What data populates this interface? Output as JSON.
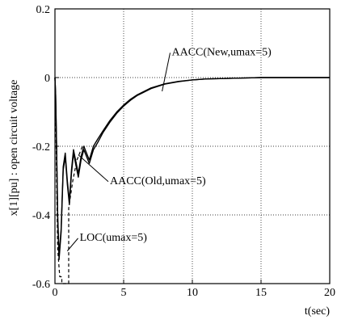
{
  "chart_data": {
    "type": "line",
    "xlabel": "t(sec)",
    "ylabel": "x[1][pu] : open circuit voltage",
    "xlim": [
      0,
      20
    ],
    "ylim": [
      -0.6,
      0.2
    ],
    "x_ticks": [
      "0",
      "5",
      "10",
      "15",
      "20"
    ],
    "y_ticks": [
      "-0.6",
      "-0.4",
      "-0.2",
      "0",
      "0.2"
    ],
    "grid": "dotted",
    "series": [
      {
        "name": "AACC(New,umax=5)",
        "style": "solid",
        "x": [
          0,
          0.05,
          0.12,
          0.2,
          0.3,
          0.45,
          0.6,
          0.75,
          0.9,
          1.05,
          1.2,
          1.35,
          1.5,
          1.7,
          1.9,
          2.1,
          2.3,
          2.5,
          2.8,
          3.1,
          3.5,
          4,
          4.5,
          5,
          5.5,
          6,
          7,
          8,
          9,
          10,
          11,
          12,
          13,
          14,
          15,
          16,
          18,
          20
        ],
        "y": [
          0,
          -0.05,
          -0.2,
          -0.4,
          -0.52,
          -0.44,
          -0.26,
          -0.22,
          -0.3,
          -0.36,
          -0.27,
          -0.21,
          -0.24,
          -0.28,
          -0.23,
          -0.2,
          -0.22,
          -0.24,
          -0.2,
          -0.18,
          -0.155,
          -0.125,
          -0.1,
          -0.08,
          -0.063,
          -0.05,
          -0.03,
          -0.018,
          -0.011,
          -0.007,
          -0.004,
          -0.003,
          -0.002,
          -0.001,
          0,
          0,
          0,
          0
        ]
      },
      {
        "name": "AACC(Old,umax=5)",
        "style": "solid",
        "x": [
          0,
          0.05,
          0.12,
          0.2,
          0.3,
          0.45,
          0.6,
          0.75,
          0.9,
          1.05,
          1.2,
          1.35,
          1.5,
          1.7,
          1.9,
          2.1,
          2.3,
          2.5,
          2.8,
          3.1,
          3.5,
          4,
          4.5,
          5,
          5.5,
          6,
          7,
          8,
          9,
          10,
          11,
          12,
          13,
          14,
          15,
          16,
          18,
          20
        ],
        "y": [
          0,
          -0.05,
          -0.21,
          -0.42,
          -0.53,
          -0.45,
          -0.27,
          -0.23,
          -0.31,
          -0.37,
          -0.28,
          -0.22,
          -0.25,
          -0.29,
          -0.24,
          -0.21,
          -0.23,
          -0.25,
          -0.21,
          -0.19,
          -0.16,
          -0.13,
          -0.104,
          -0.083,
          -0.066,
          -0.052,
          -0.032,
          -0.019,
          -0.012,
          -0.007,
          -0.004,
          -0.003,
          -0.002,
          -0.001,
          0,
          0,
          0,
          0
        ]
      },
      {
        "name": "LOC(umax=5)",
        "style": "dashed",
        "x": [
          0,
          0.05,
          0.12,
          0.2,
          0.35,
          0.5,
          0.5,
          1.0,
          1.0,
          1.3,
          1.6,
          2.0
        ],
        "y": [
          0,
          -0.1,
          -0.3,
          -0.5,
          -0.58,
          -0.58,
          -0.6,
          -0.6,
          -0.38,
          -0.3,
          -0.24,
          -0.2
        ]
      }
    ],
    "annotations": [
      {
        "text": "AACC(New,umax=5)",
        "x": 8.5,
        "y": 0.065,
        "arrow_to": [
          7.8,
          -0.04
        ]
      },
      {
        "text": "AACC(Old,umax=5)",
        "x": 4.0,
        "y": -0.31,
        "arrow_to": [
          1.7,
          -0.225
        ]
      },
      {
        "text": "LOC(umax=5)",
        "x": 1.8,
        "y": -0.475,
        "arrow_to": [
          0.9,
          -0.505
        ]
      }
    ]
  }
}
